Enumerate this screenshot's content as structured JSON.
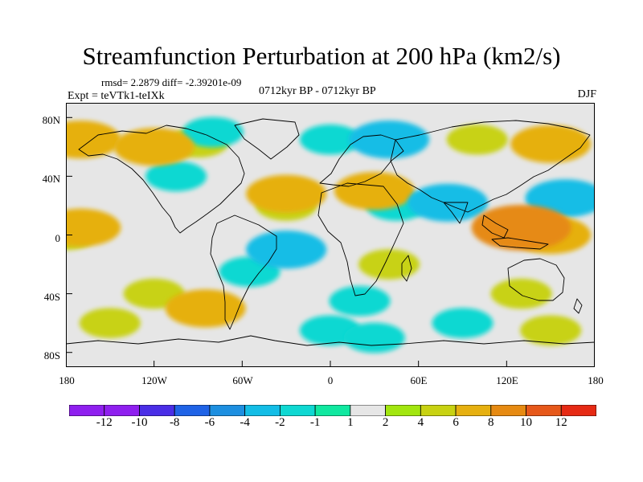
{
  "title": "Streamfunction Perturbation at 200 hPa (km2/s)",
  "stats": "rmsd= 2.2879 diff= -2.39201e-09",
  "experiment": "Expt = teVTk1-teIXk",
  "period": "0712kyr BP - 0712kyr BP",
  "season": "DJF",
  "lat_labels": [
    "80N",
    "40N",
    "0",
    "40S",
    "80S"
  ],
  "lon_labels": [
    "180",
    "120W",
    "60W",
    "0",
    "60E",
    "120E",
    "180"
  ],
  "colorbar": {
    "labels": [
      "-12",
      "-10",
      "-8",
      "-6",
      "-4",
      "-2",
      "-1",
      "1",
      "2",
      "4",
      "6",
      "8",
      "10",
      "12"
    ],
    "colors": [
      "#8f1fef",
      "#4a2ee6",
      "#1f63e6",
      "#1d8fe0",
      "#13bde6",
      "#0fd8d2",
      "#10e8a0",
      "#e6e6e6",
      "#a2e60f",
      "#c8d212",
      "#e6b010",
      "#e68a12",
      "#e6581a",
      "#e62a14"
    ]
  },
  "chart_data": {
    "type": "heatmap",
    "title": "Streamfunction Perturbation at 200 hPa (km2/s)",
    "variable": "streamfunction perturbation",
    "units": "km2/s",
    "level_hPa": 200,
    "season": "DJF",
    "lon_range": [
      -180,
      180
    ],
    "lat_range": [
      -90,
      90
    ],
    "contour_levels": [
      -12,
      -10,
      -8,
      -6,
      -4,
      -2,
      -1,
      1,
      2,
      4,
      6,
      8,
      10,
      12
    ],
    "features": [
      {
        "lon": -170,
        "lat": 65,
        "value": 4
      },
      {
        "lon": -120,
        "lat": 60,
        "value": 4
      },
      {
        "lon": -90,
        "lat": 63,
        "value": 2
      },
      {
        "lon": -105,
        "lat": 40,
        "value": -2
      },
      {
        "lon": -80,
        "lat": 70,
        "value": -2
      },
      {
        "lon": -30,
        "lat": 20,
        "value": 2
      },
      {
        "lon": -30,
        "lat": 28,
        "value": 4
      },
      {
        "lon": 30,
        "lat": 30,
        "value": 4
      },
      {
        "lon": 40,
        "lat": 65,
        "value": -4
      },
      {
        "lon": 0,
        "lat": 65,
        "value": -2
      },
      {
        "lon": 100,
        "lat": 65,
        "value": 2
      },
      {
        "lon": 150,
        "lat": 62,
        "value": 4
      },
      {
        "lon": 160,
        "lat": 25,
        "value": -4
      },
      {
        "lon": 80,
        "lat": 22,
        "value": -4
      },
      {
        "lon": 45,
        "lat": 20,
        "value": -2
      },
      {
        "lon": 130,
        "lat": 5,
        "value": 6
      },
      {
        "lon": 150,
        "lat": 0,
        "value": 4
      },
      {
        "lon": 130,
        "lat": -40,
        "value": 2
      },
      {
        "lon": -30,
        "lat": -10,
        "value": -4
      },
      {
        "lon": -55,
        "lat": -25,
        "value": -2
      },
      {
        "lon": -180,
        "lat": 0,
        "value": 2
      },
      {
        "lon": -170,
        "lat": 5,
        "value": 4
      },
      {
        "lon": -85,
        "lat": -50,
        "value": 4
      },
      {
        "lon": -120,
        "lat": -40,
        "value": 2
      },
      {
        "lon": 20,
        "lat": -45,
        "value": -2
      },
      {
        "lon": 0,
        "lat": -65,
        "value": -2
      },
      {
        "lon": 30,
        "lat": -70,
        "value": -2
      },
      {
        "lon": 90,
        "lat": -60,
        "value": -2
      },
      {
        "lon": -150,
        "lat": -60,
        "value": 2
      },
      {
        "lon": 40,
        "lat": -20,
        "value": 2
      },
      {
        "lon": 150,
        "lat": -65,
        "value": 2
      }
    ]
  }
}
